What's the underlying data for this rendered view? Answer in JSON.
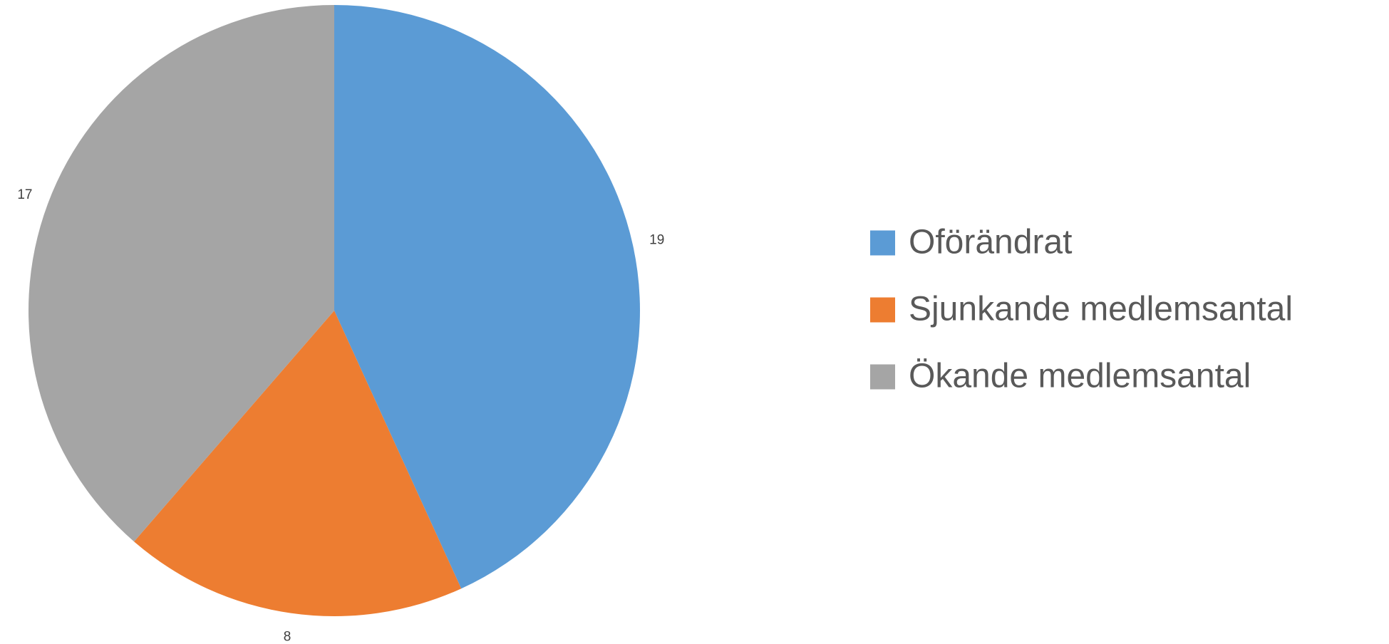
{
  "chart_data": {
    "type": "pie",
    "categories": [
      "Oförändrat",
      "Sjunkande medlemsantal",
      "Ökande medlemsantal"
    ],
    "values": [
      19,
      8,
      17
    ],
    "colors": [
      "#5b9bd5",
      "#ed7d31",
      "#a5a5a5"
    ],
    "legend": "right"
  }
}
